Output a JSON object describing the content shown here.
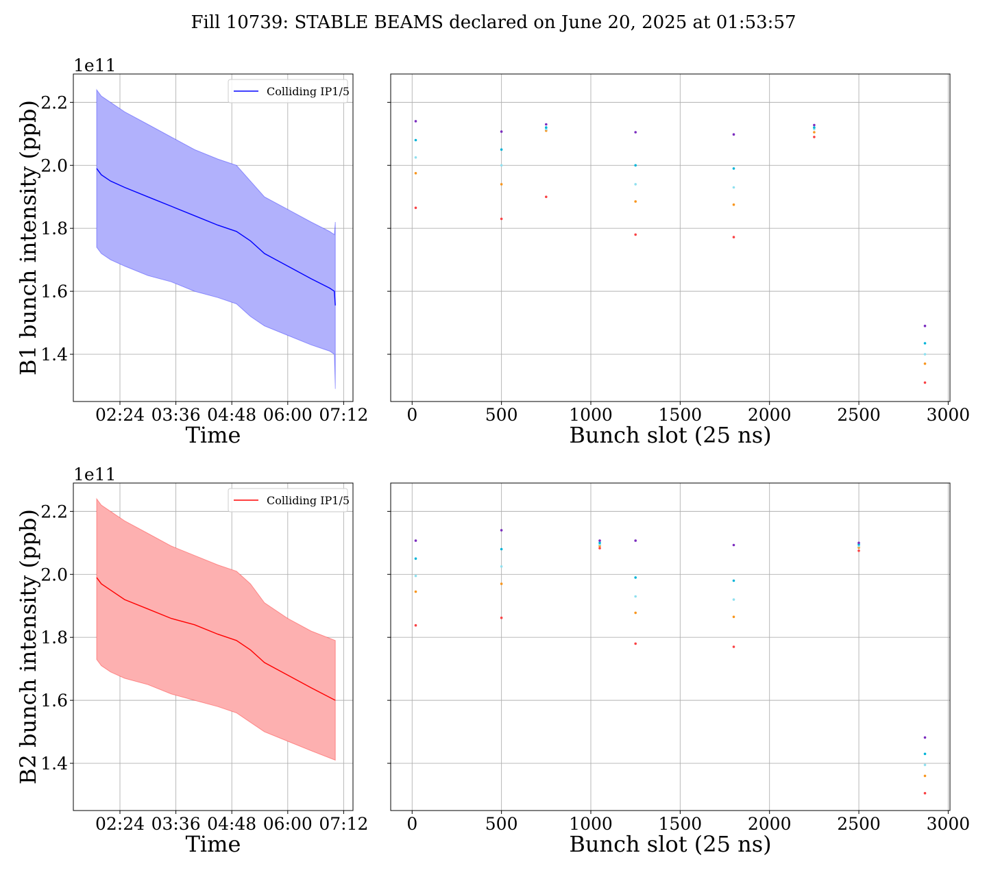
{
  "title": "Fill 10739: STABLE BEAMS declared on June 20, 2025 at 01:53:57",
  "colors": {
    "beam1": "#0000ff",
    "beam1_band": "#b1b1fc",
    "beam2": "#ff0000",
    "beam2_band": "#fdb0b0",
    "grid": "#b0b0b0",
    "scatter_palette": [
      "#f94144",
      "#f8961e",
      "#90e0ef",
      "#00b4d8",
      "#7b2cbf"
    ]
  },
  "chart_data": [
    {
      "type": "area",
      "panel": "b1-time",
      "xlabel": "Time",
      "ylabel": "B1 bunch intensity (ppb)",
      "offset_label": "1e11",
      "x_ticks": [
        "02:24",
        "03:36",
        "04:48",
        "06:00",
        "07:12"
      ],
      "x_tick_hours": [
        2.4,
        3.6,
        4.8,
        6.0,
        7.2
      ],
      "xlim_hours": [
        1.4,
        7.4
      ],
      "y_ticks": [
        "1.4",
        "1.6",
        "1.8",
        "2.0",
        "2.2"
      ],
      "y_tick_values": [
        1.4,
        1.6,
        1.8,
        2.0,
        2.2
      ],
      "ylim": [
        1.25,
        2.29
      ],
      "legend": {
        "label": "Colliding IP1/5",
        "position": "top-right"
      },
      "series": [
        {
          "name": "Colliding IP1/5",
          "x_hours": [
            1.9,
            2.0,
            2.2,
            2.5,
            3.0,
            3.5,
            4.0,
            4.5,
            4.9,
            5.2,
            5.5,
            6.0,
            6.5,
            6.9,
            7.0,
            7.02
          ],
          "mean": [
            1.99,
            1.97,
            1.95,
            1.93,
            1.9,
            1.87,
            1.84,
            1.81,
            1.79,
            1.76,
            1.72,
            1.68,
            1.64,
            1.61,
            1.6,
            1.555
          ],
          "upper": [
            2.24,
            2.22,
            2.2,
            2.17,
            2.13,
            2.09,
            2.05,
            2.02,
            2.0,
            1.95,
            1.9,
            1.86,
            1.82,
            1.79,
            1.78,
            1.82
          ],
          "lower": [
            1.74,
            1.72,
            1.7,
            1.68,
            1.65,
            1.63,
            1.6,
            1.58,
            1.56,
            1.52,
            1.49,
            1.46,
            1.43,
            1.41,
            1.4,
            1.29
          ]
        }
      ]
    },
    {
      "type": "scatter",
      "panel": "b1-slot",
      "xlabel": "Bunch slot (25 ns)",
      "x_ticks": [
        "0",
        "500",
        "1000",
        "1500",
        "2000",
        "2500",
        "3000"
      ],
      "x_tick_values": [
        0,
        500,
        1000,
        1500,
        2000,
        2500,
        3000
      ],
      "xlim": [
        -120,
        3010
      ],
      "ylim": [
        1.25,
        2.29
      ],
      "points": [
        {
          "x": 20,
          "y": [
            1.865,
            1.975,
            2.025,
            2.08,
            2.14
          ]
        },
        {
          "x": 500,
          "y": [
            1.83,
            1.94,
            2.0,
            2.05,
            2.107
          ]
        },
        {
          "x": 750,
          "y": [
            1.9,
            2.11,
            2.115,
            2.12,
            2.13
          ]
        },
        {
          "x": 1250,
          "y": [
            1.78,
            1.885,
            1.94,
            2.0,
            2.105
          ]
        },
        {
          "x": 1800,
          "y": [
            1.772,
            1.875,
            1.93,
            1.99,
            2.098
          ]
        },
        {
          "x": 2250,
          "y": [
            2.09,
            2.105,
            2.115,
            2.12,
            2.128
          ]
        },
        {
          "x": 2870,
          "y": [
            1.31,
            1.37,
            1.4,
            1.435,
            1.49
          ]
        }
      ]
    },
    {
      "type": "area",
      "panel": "b2-time",
      "xlabel": "Time",
      "ylabel": "B2 bunch intensity (ppb)",
      "offset_label": "1e11",
      "x_ticks": [
        "02:24",
        "03:36",
        "04:48",
        "06:00",
        "07:12"
      ],
      "x_tick_hours": [
        2.4,
        3.6,
        4.8,
        6.0,
        7.2
      ],
      "xlim_hours": [
        1.4,
        7.4
      ],
      "y_ticks": [
        "1.4",
        "1.6",
        "1.8",
        "2.0",
        "2.2"
      ],
      "y_tick_values": [
        1.4,
        1.6,
        1.8,
        2.0,
        2.2
      ],
      "ylim": [
        1.25,
        2.29
      ],
      "legend": {
        "label": "Colliding IP1/5",
        "position": "top-right"
      },
      "series": [
        {
          "name": "Colliding IP1/5",
          "x_hours": [
            1.9,
            2.0,
            2.2,
            2.5,
            3.0,
            3.5,
            4.0,
            4.5,
            4.9,
            5.2,
            5.5,
            6.0,
            6.5,
            7.02
          ],
          "mean": [
            1.99,
            1.97,
            1.95,
            1.92,
            1.89,
            1.86,
            1.84,
            1.81,
            1.79,
            1.76,
            1.72,
            1.68,
            1.64,
            1.6
          ],
          "upper": [
            2.24,
            2.22,
            2.2,
            2.17,
            2.13,
            2.09,
            2.06,
            2.03,
            2.01,
            1.97,
            1.91,
            1.86,
            1.82,
            1.79
          ],
          "lower": [
            1.73,
            1.71,
            1.69,
            1.67,
            1.65,
            1.62,
            1.6,
            1.58,
            1.56,
            1.53,
            1.5,
            1.47,
            1.44,
            1.41
          ]
        }
      ]
    },
    {
      "type": "scatter",
      "panel": "b2-slot",
      "xlabel": "Bunch slot (25 ns)",
      "x_ticks": [
        "0",
        "500",
        "1000",
        "1500",
        "2000",
        "2500",
        "3000"
      ],
      "x_tick_values": [
        0,
        500,
        1000,
        1500,
        2000,
        2500,
        3000
      ],
      "xlim": [
        -120,
        3010
      ],
      "ylim": [
        1.25,
        2.29
      ],
      "points": [
        {
          "x": 20,
          "y": [
            1.838,
            1.945,
            1.995,
            2.05,
            2.107
          ]
        },
        {
          "x": 500,
          "y": [
            1.862,
            1.97,
            2.025,
            2.08,
            2.14
          ]
        },
        {
          "x": 1050,
          "y": [
            2.083,
            2.09,
            2.095,
            2.1,
            2.107
          ]
        },
        {
          "x": 1250,
          "y": [
            1.78,
            1.878,
            1.93,
            1.99,
            2.107
          ]
        },
        {
          "x": 1800,
          "y": [
            1.77,
            1.865,
            1.92,
            1.98,
            2.093
          ]
        },
        {
          "x": 2500,
          "y": [
            2.075,
            2.085,
            2.09,
            2.095,
            2.1
          ]
        },
        {
          "x": 2870,
          "y": [
            1.305,
            1.36,
            1.395,
            1.43,
            1.482
          ]
        }
      ]
    }
  ]
}
